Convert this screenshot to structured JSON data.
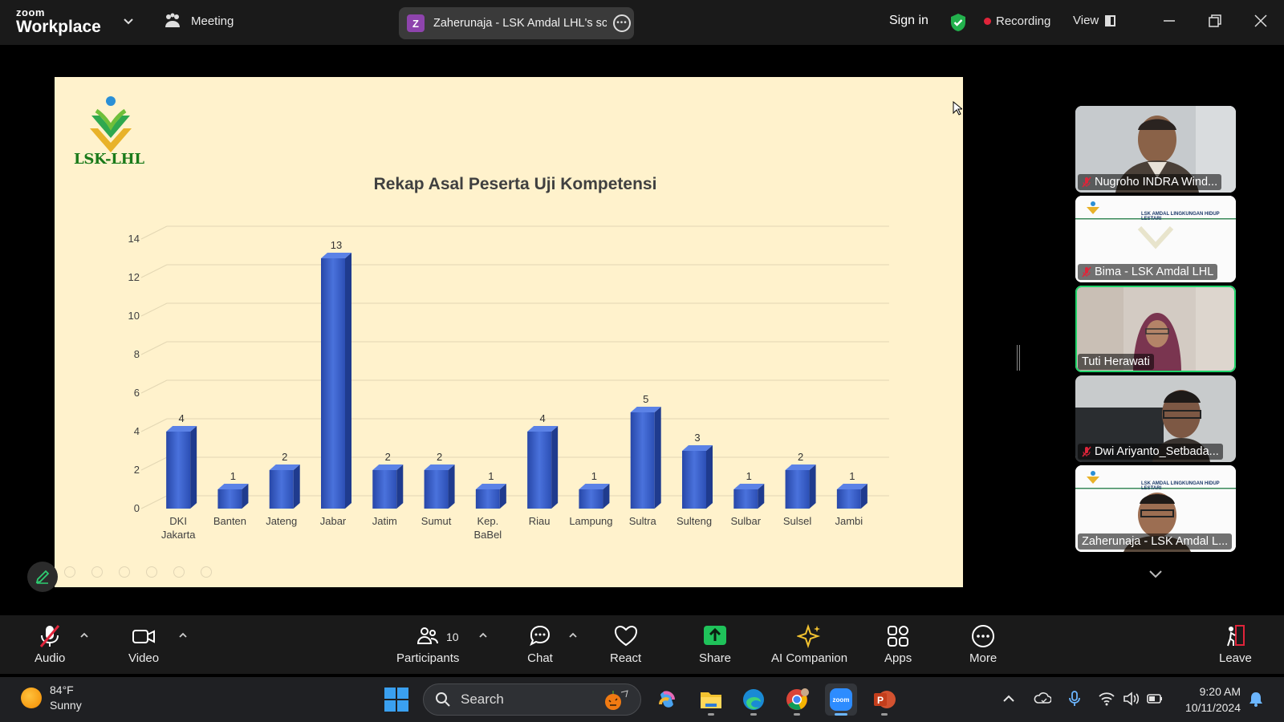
{
  "topbar": {
    "logo_small": "zoom",
    "logo_big": "Workplace",
    "meeting_label": "Meeting",
    "title_badge": "Z",
    "title_text": "Zaherunaja - LSK Amdal LHL's screen",
    "sign_in": "Sign in",
    "recording": "Recording",
    "view": "View"
  },
  "slide": {
    "logo_text": "LSK-LHL"
  },
  "chart_data": {
    "type": "bar",
    "title": "Rekap Asal Peserta Uji Kompetensi",
    "categories": [
      [
        "DKI",
        "Jakarta"
      ],
      [
        "Banten"
      ],
      [
        "Jateng"
      ],
      [
        "Jabar"
      ],
      [
        "Jatim"
      ],
      [
        "Sumut"
      ],
      [
        "Kep.",
        "BaBel"
      ],
      [
        "Riau"
      ],
      [
        "Lampung"
      ],
      [
        "Sultra"
      ],
      [
        "Sulteng"
      ],
      [
        "Sulbar"
      ],
      [
        "Sulsel"
      ],
      [
        "Jambi"
      ]
    ],
    "values": [
      4,
      1,
      2,
      13,
      2,
      2,
      1,
      4,
      1,
      5,
      3,
      1,
      2,
      1
    ],
    "yticks": [
      "0",
      "2",
      "4",
      "6",
      "8",
      "10",
      "12",
      "14"
    ],
    "ylim": [
      0,
      14
    ],
    "grid": true,
    "bar_color": "#3a5fc8"
  },
  "gallery": {
    "tiles": [
      {
        "name": "Nugroho INDRA Wind...",
        "muted": true
      },
      {
        "name": "Bima - LSK Amdal LHL",
        "muted": true
      },
      {
        "name": "Tuti Herawati",
        "muted": false
      },
      {
        "name": "Dwi Ariyanto_Setbada...",
        "muted": true
      },
      {
        "name": "Zaherunaja - LSK Amdal L...",
        "muted": false
      }
    ],
    "slide_header": "LSK AMDAL LINGKUNGAN HIDUP LESTARI"
  },
  "toolbar": {
    "audio": "Audio",
    "video": "Video",
    "participants": "Participants",
    "participants_count": "10",
    "chat": "Chat",
    "react": "React",
    "share": "Share",
    "ai_companion": "AI Companion",
    "apps": "Apps",
    "more": "More",
    "leave": "Leave"
  },
  "taskbar": {
    "temperature": "84°F",
    "condition": "Sunny",
    "search_placeholder": "Search",
    "time": "9:20 AM",
    "date": "10/11/2024"
  }
}
